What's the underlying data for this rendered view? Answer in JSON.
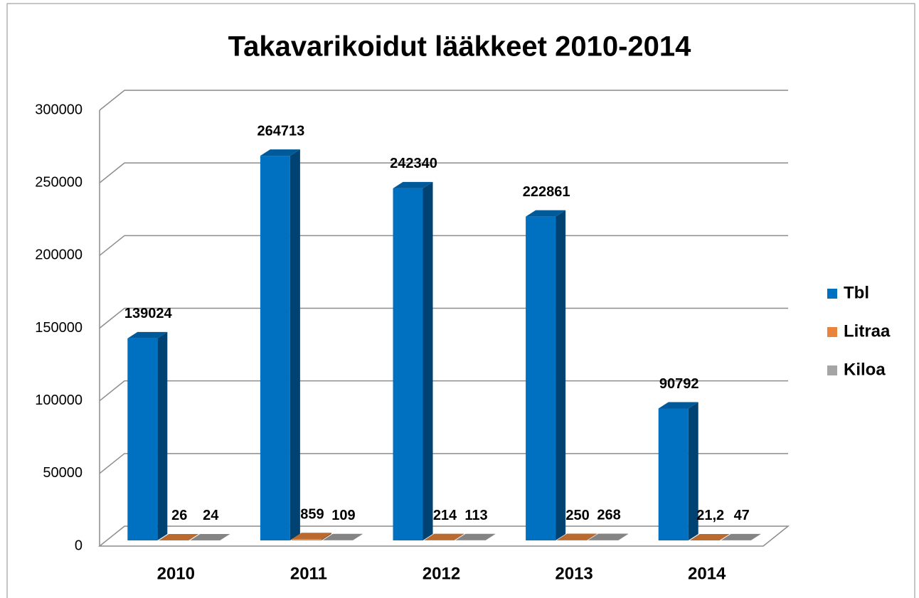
{
  "chart_data": {
    "type": "bar3d",
    "title": "Takavarikoidut lääkkeet 2010-2014",
    "categories": [
      "2010",
      "2011",
      "2012",
      "2013",
      "2014"
    ],
    "series": [
      {
        "name": "Tbl",
        "color": "#0070c0",
        "values": [
          139024,
          264713,
          242340,
          222861,
          90792
        ]
      },
      {
        "name": "Litraa",
        "color": "#e9853b",
        "values": [
          26,
          859,
          214,
          250,
          21.2
        ],
        "value_labels": [
          "26",
          "859",
          "214",
          "250",
          "21,2"
        ]
      },
      {
        "name": "Kiloa",
        "color": "#a5a5a5",
        "values": [
          24,
          109,
          113,
          268,
          47
        ]
      }
    ],
    "ylim": [
      0,
      300000
    ],
    "yticks": [
      0,
      50000,
      100000,
      150000,
      200000,
      250000,
      300000
    ],
    "grid": true,
    "legend": "right"
  }
}
